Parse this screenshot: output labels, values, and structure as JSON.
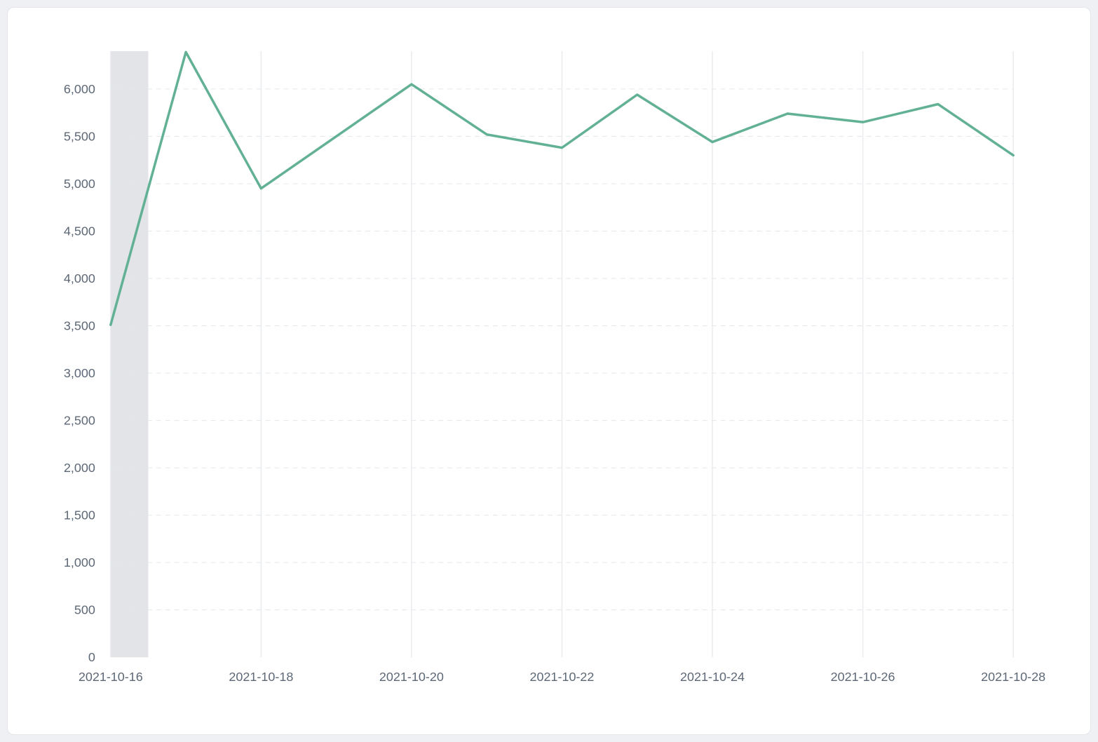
{
  "colors": {
    "page_bg": "#eef0f3",
    "card_bg": "#ffffff",
    "tick_label": "#5d6876",
    "h_gridline": "#e4e7ea",
    "v_gridline": "#e9ebee",
    "band": "#e2e4e8",
    "line": "#62b194"
  },
  "chart_data": {
    "type": "line",
    "title": "",
    "xlabel": "",
    "ylabel": "",
    "legend_position": "none",
    "x": [
      "2021-10-16",
      "2021-10-17",
      "2021-10-18",
      "2021-10-19",
      "2021-10-20",
      "2021-10-21",
      "2021-10-22",
      "2021-10-23",
      "2021-10-24",
      "2021-10-25",
      "2021-10-26",
      "2021-10-27",
      "2021-10-28"
    ],
    "values": [
      3510,
      6390,
      4950,
      5500,
      6050,
      5520,
      5380,
      5940,
      5440,
      5740,
      5650,
      5840,
      5300
    ],
    "x_tick_labels": [
      "2021-10-16",
      "2021-10-18",
      "2021-10-20",
      "2021-10-22",
      "2021-10-24",
      "2021-10-26",
      "2021-10-28"
    ],
    "y_tick_labels": [
      "0",
      "500",
      "1,000",
      "1,500",
      "2,000",
      "2,500",
      "3,000",
      "3,500",
      "4,000",
      "4,500",
      "5,000",
      "5,500",
      "6,000"
    ],
    "y_tick_values": [
      0,
      500,
      1000,
      1500,
      2000,
      2500,
      3000,
      3500,
      4000,
      4500,
      5000,
      5500,
      6000
    ],
    "ylim": [
      0,
      6400
    ],
    "grid": {
      "horizontal": "dashed",
      "vertical": "solid"
    },
    "line_color": "#62b194",
    "highlight_band": {
      "start_index": 0,
      "end_index": 0.5,
      "color": "#e2e4e8"
    }
  }
}
